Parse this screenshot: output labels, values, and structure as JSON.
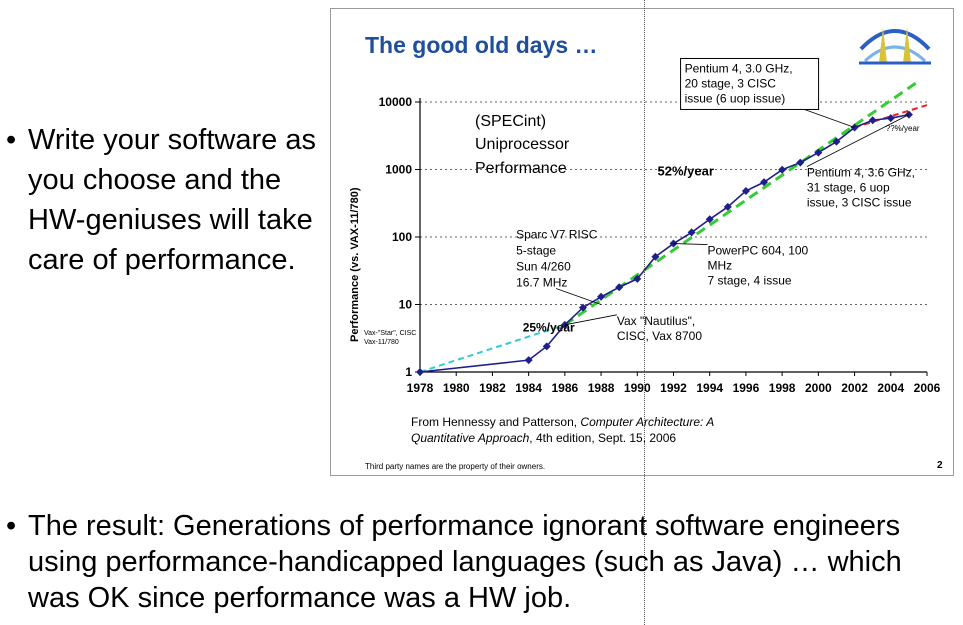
{
  "bullets": [
    "Write your software as you choose and the HW-geniuses will take care of performance.",
    "The result: Generations of performance ignorant software engineers using performance-handicapped languages (such as Java) … which was OK since performance was a HW job."
  ],
  "bullet_symbol": "•",
  "slide": {
    "title": "The good old days …",
    "title_color": "#1f4e9c",
    "page_number": "2",
    "footer": "Third party names are the property of their owners.",
    "citation_line1_prefix": "From Hennessy and Patterson, ",
    "citation_line1_italic": "Computer Architecture: A",
    "citation_line2_italic": "Quantitative Approach",
    "citation_line2_suffix": ", 4th edition, Sept. 15, 2006",
    "logo_icon": "bridge-logo-icon"
  },
  "chart_data": {
    "type": "line",
    "yscale": "log",
    "ylabel": "Performance (vs. VAX-11/780)",
    "xlabel": "",
    "xlim": [
      1978,
      2006
    ],
    "ylim": [
      1,
      10000
    ],
    "x_ticks": [
      "1978",
      "1980",
      "1982",
      "1984",
      "1986",
      "1988",
      "1990",
      "1992",
      "1994",
      "1996",
      "1998",
      "2000",
      "2002",
      "2004",
      "2006"
    ],
    "y_ticks": [
      "1",
      "10",
      "100",
      "1000",
      "10000"
    ],
    "grid_y_dotted": true,
    "inset_text": [
      "(SPECint)",
      "Uniprocessor",
      "Performance"
    ],
    "series": [
      {
        "color": "#1f1f8a",
        "marker": "diamond",
        "x": [
          1978,
          1984,
          1985,
          1986,
          1987,
          1988,
          1989,
          1990,
          1991,
          1992,
          1993,
          1994,
          1995,
          1996,
          1997,
          1998,
          1999,
          2000,
          2001,
          2002,
          2003,
          2004,
          2005
        ],
        "y": [
          1,
          1.5,
          2.4,
          5,
          9,
          13,
          18,
          24,
          51,
          80,
          117,
          183,
          280,
          481,
          649,
          993,
          1267,
          1779,
          2584,
          4195,
          5364,
          5764,
          6505
        ]
      }
    ],
    "trend_lines": [
      {
        "color": "#33cccc",
        "style": "dashed",
        "x": [
          1978,
          1986
        ],
        "y": [
          1,
          5
        ]
      },
      {
        "color": "#33cc33",
        "style": "dashed",
        "x": [
          1986,
          2005.5
        ],
        "y": [
          5,
          20000
        ]
      },
      {
        "color": "#ee2222",
        "style": "dashed",
        "x": [
          2002,
          2006
        ],
        "y": [
          4195,
          9000
        ]
      }
    ],
    "annotations": [
      {
        "text": [
          "Vax-\"Star\", CISC",
          "Vax-11/780"
        ],
        "x": 1978,
        "y": 1
      },
      {
        "text": [
          "25%/year"
        ],
        "x": 1984.5,
        "y": 6,
        "bold": true
      },
      {
        "text": [
          "Vax \"Nautilus\",",
          "CISC, Vax 8700"
        ],
        "x": 1986,
        "y": 5
      },
      {
        "text": [
          "Sparc V7 RISC",
          "5-stage",
          "Sun 4/260",
          "16.7 MHz"
        ],
        "x": 1988,
        "y": 10
      },
      {
        "text": [
          "52%/year"
        ],
        "x": 1992,
        "y": 200,
        "bold": true
      },
      {
        "text": [
          "PowerPC 604, 100",
          "MHz",
          "7 stage, 4 issue"
        ],
        "x": 1992,
        "y": 80
      },
      {
        "text": [
          "Pentium 4, 3.0 GHz,",
          "20 stage, 3 CISC",
          "issue (6 uop issue)"
        ],
        "x": 2002,
        "y": 4195
      },
      {
        "text": [
          "??%/year"
        ],
        "x": 2004,
        "y": 6000
      },
      {
        "text": [
          "Pentium 4, 3.6 GHz,",
          "31 stage, 6 uop",
          "issue, 3 CISC issue"
        ],
        "x": 2005,
        "y": 6505
      }
    ]
  }
}
